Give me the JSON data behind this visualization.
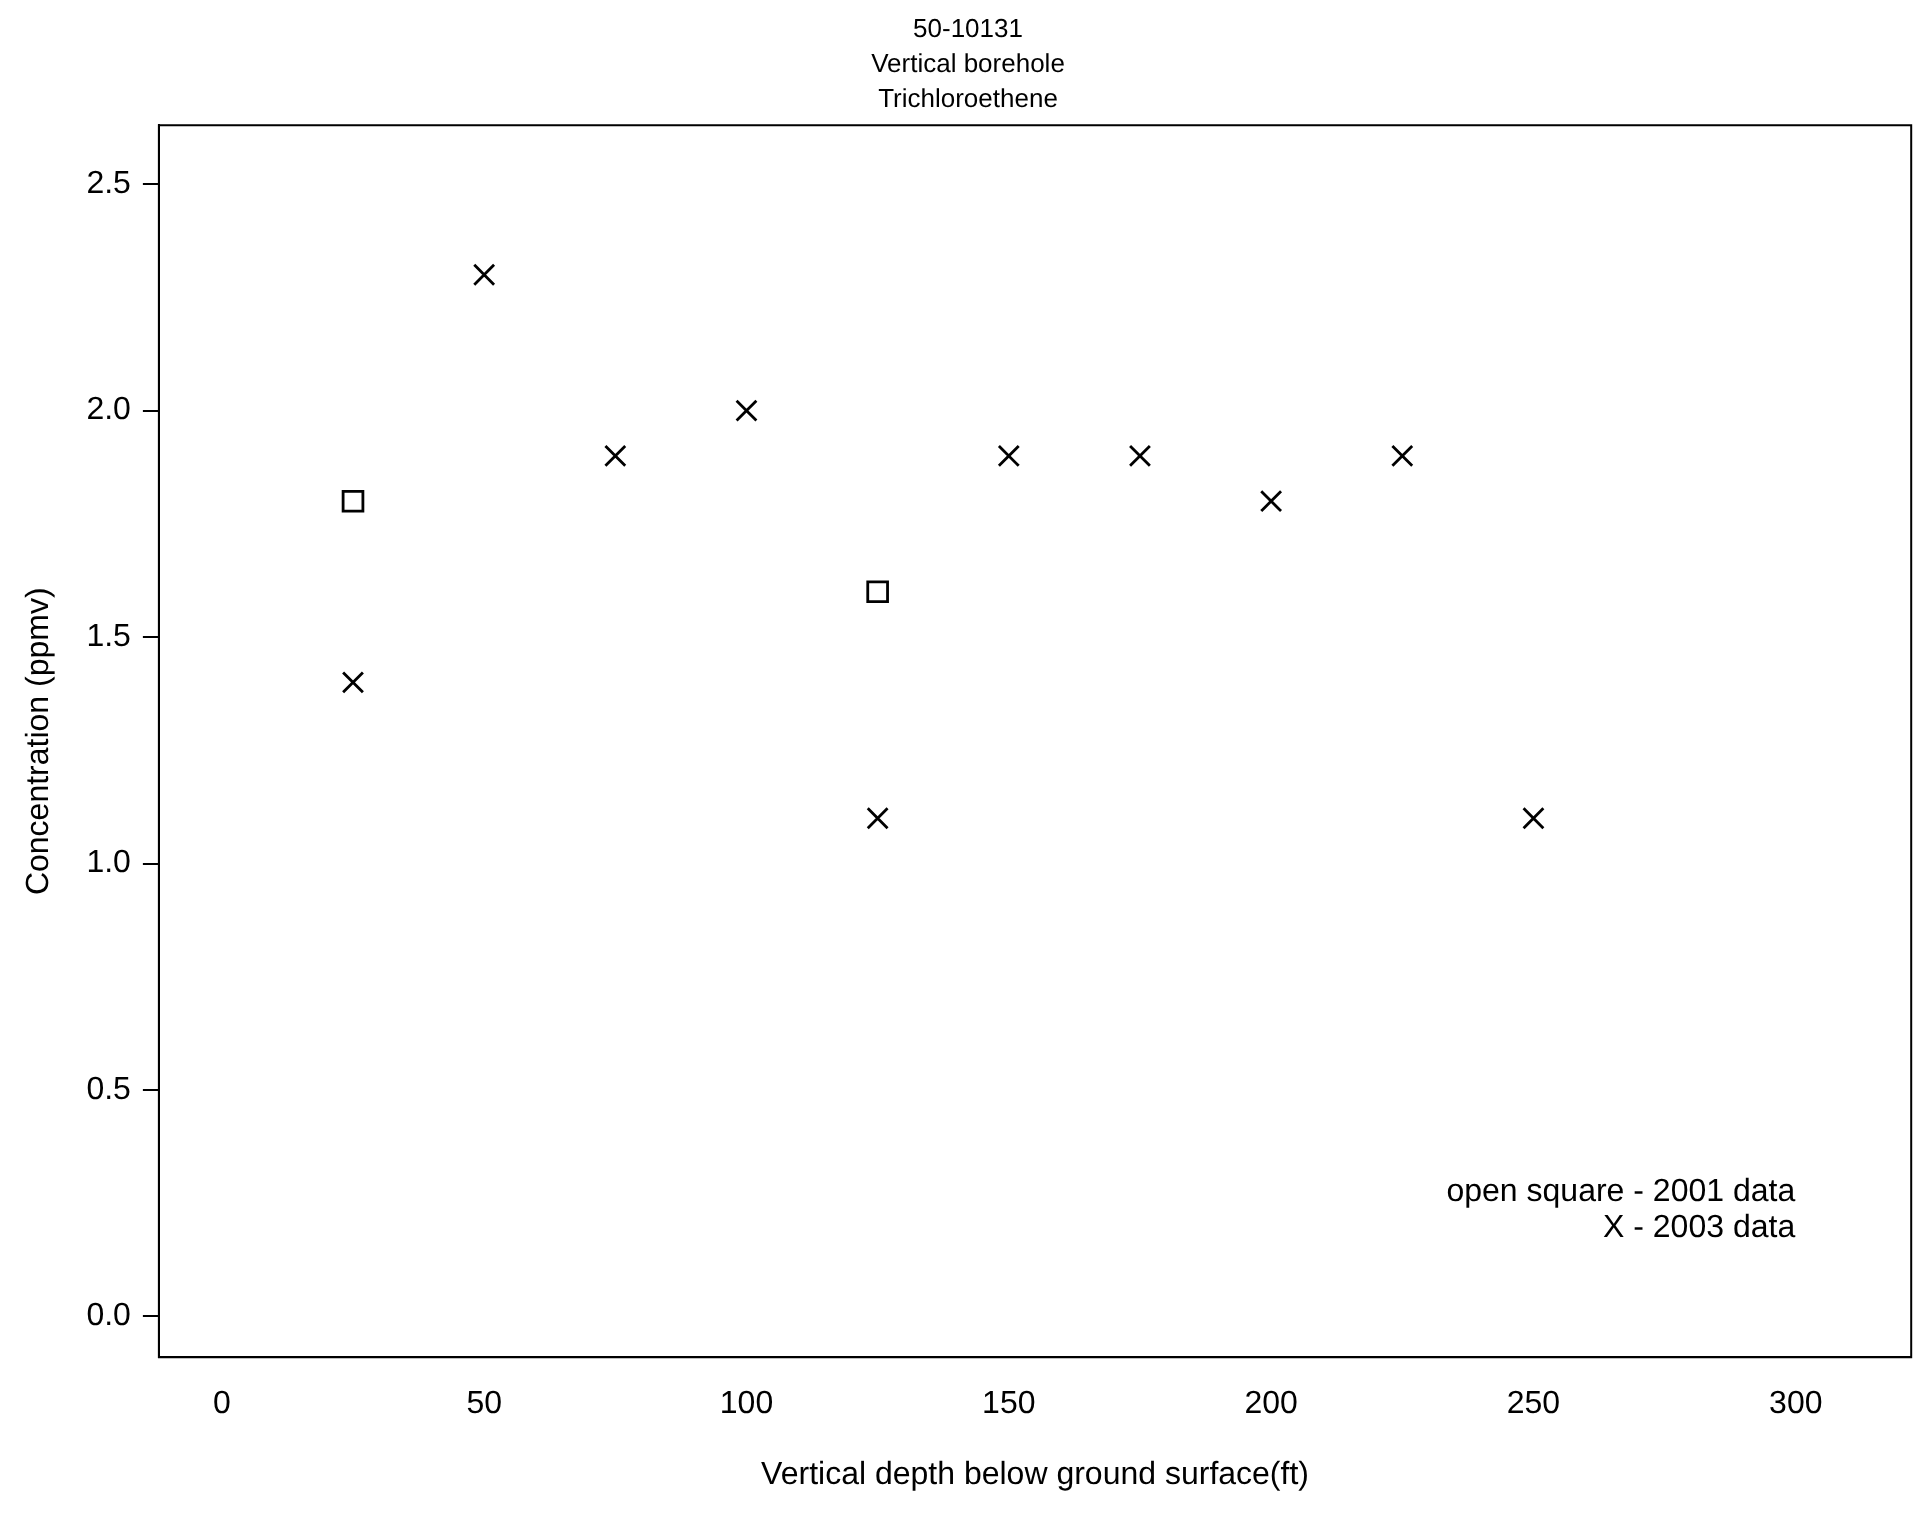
{
  "chart_data": {
    "type": "scatter",
    "title": "50-10131\nVertical borehole\nTrichloroethene",
    "xlabel": "Vertical depth below ground surface(ft)",
    "ylabel": "Concentration (ppmv)",
    "series": [
      {
        "marker": "square",
        "color": "#000000",
        "x": [
          25,
          125
        ],
        "values": [
          1.8,
          1.6
        ]
      },
      {
        "marker": "cross",
        "color": "#000000",
        "x": [
          25,
          50,
          75,
          100,
          125,
          150,
          175,
          200,
          225,
          250
        ],
        "values": [
          1.4,
          2.3,
          1.9,
          2.0,
          1.1,
          1.9,
          1.9,
          1.8,
          1.9,
          1.1
        ]
      }
    ],
    "xlim": [
      -12,
      322
    ],
    "xticks": [
      0,
      50,
      100,
      150,
      200,
      250,
      300
    ],
    "ylim": [
      -0.09,
      2.63
    ],
    "yticks": [
      {
        "value": 0,
        "label": "0.0"
      },
      0.5,
      {
        "value": 1,
        "label": "1.0"
      },
      1.5,
      {
        "value": 2,
        "label": "2.0"
      },
      2.5
    ],
    "annotations": [
      "open square - 2001 data",
      "X - 2003 data"
    ],
    "grid": false,
    "legend": false
  }
}
